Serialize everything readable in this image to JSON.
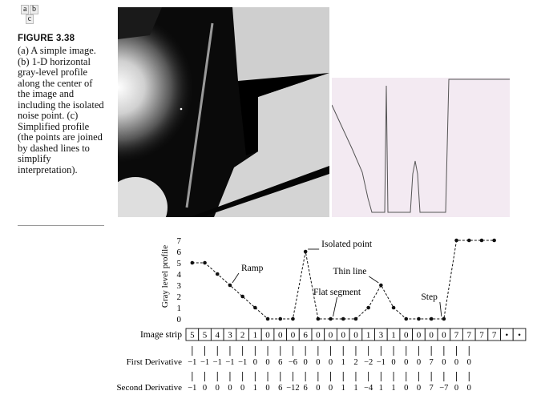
{
  "panel_labels": [
    "a",
    "b",
    "c"
  ],
  "figure": {
    "title": "FIGURE 3.38",
    "caption": "(a) A simple image. (b) 1-D horizontal gray-level profile along the center of the image and including the isolated noise point. (c) Simplified profile (the points are joined by dashed lines to simplify interpretation)."
  },
  "chart_data": {
    "type": "line",
    "ylabel": "Gray level profile",
    "ylim": [
      0,
      7
    ],
    "yticks": [
      0,
      1,
      2,
      3,
      4,
      5,
      6,
      7
    ],
    "series": [
      {
        "values": [
          5,
          5,
          4,
          3,
          2,
          1,
          0,
          0,
          0,
          6,
          0,
          0,
          0,
          0,
          1,
          3,
          1,
          0,
          0,
          0,
          0,
          7,
          7,
          7,
          7
        ]
      }
    ],
    "annotations": [
      {
        "label": "Isolated point",
        "index": 9
      },
      {
        "label": "Ramp",
        "index": 3
      },
      {
        "label": "Thin line",
        "index": 15
      },
      {
        "label": "Flat segment",
        "index": 11
      },
      {
        "label": "Step",
        "index": 20
      }
    ],
    "strip_label": "Image strip",
    "strip": [
      "5",
      "5",
      "4",
      "3",
      "2",
      "1",
      "0",
      "0",
      "0",
      "6",
      "0",
      "0",
      "0",
      "0",
      "1",
      "3",
      "1",
      "0",
      "0",
      "0",
      "0",
      "7",
      "7",
      "7",
      "7",
      "•",
      "•"
    ],
    "first_derivative_label": "First Derivative",
    "first_derivative": [
      "−1",
      "−1",
      "−1",
      "−1",
      "−1",
      "0",
      "0",
      "6",
      "−6",
      "0",
      "0",
      "0",
      "1",
      "2",
      "−2",
      "−1",
      "0",
      "0",
      "0",
      "7",
      "0",
      "0",
      "0"
    ],
    "second_derivative_label": "Second Derivative",
    "second_derivative": [
      "−1",
      "0",
      "0",
      "0",
      "0",
      "1",
      "0",
      "6",
      "−12",
      "6",
      "0",
      "0",
      "1",
      "1",
      "−4",
      "1",
      "1",
      "0",
      "0",
      "7",
      "−7",
      "0",
      "0"
    ]
  },
  "colors": {
    "profile_bg": "#f3eaf2",
    "profile_line": "#555555",
    "ink": "#111111"
  }
}
